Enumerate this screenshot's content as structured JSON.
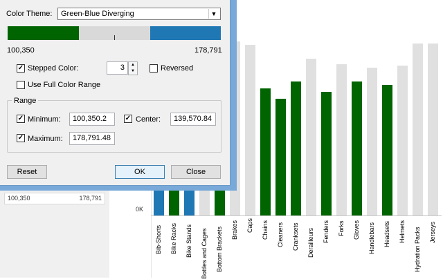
{
  "dialog": {
    "color_theme_label": "Color Theme:",
    "color_theme_value": "Green-Blue Diverging",
    "range_min_text": "100,350",
    "range_max_text": "178,791",
    "stepped_color_label": "Stepped Color:",
    "stepped_value": "3",
    "reversed_label": "Reversed",
    "use_full_range_label": "Use Full Color Range",
    "range_group_label": "Range",
    "minimum_label": "Minimum:",
    "minimum_value": "100,350.2",
    "center_label": "Center:",
    "center_value": "139,570.84",
    "maximum_label": "Maximum:",
    "maximum_value": "178,791.48",
    "reset_label": "Reset",
    "ok_label": "OK",
    "close_label": "Close",
    "stepped_checked": true,
    "reversed_checked": false,
    "full_range_checked": false,
    "minimum_checked": true,
    "center_checked": true,
    "maximum_checked": true,
    "ramp_colors": [
      "#006400",
      "#d9d9d9",
      "#1f77b4"
    ]
  },
  "legend": {
    "min": "100,350",
    "max": "178,791"
  },
  "axis": {
    "zero_label": "0K"
  },
  "chart_data": {
    "type": "bar",
    "categories": [
      "Bib-Shorts",
      "Bike Racks",
      "Bike Stands",
      "Bottles and Cages",
      "Bottom Brackets",
      "Brakes",
      "Caps",
      "Chains",
      "Cleaners",
      "Cranksets",
      "Derailleurs",
      "Fenders",
      "Forks",
      "Gloves",
      "Handlebars",
      "Headsets",
      "Helmets",
      "Hydration Packs",
      "Jerseys"
    ],
    "values": [
      null,
      null,
      null,
      null,
      null,
      100,
      98,
      73,
      67,
      77,
      90,
      71,
      87,
      77,
      85,
      75,
      86,
      99,
      99
    ],
    "colors": [
      "#1f77b4",
      "#006400",
      "#1f77b4",
      "#e0e0e0",
      "#006400",
      "#e0e0e0",
      "#e0e0e0",
      "#006400",
      "#006400",
      "#006400",
      "#e0e0e0",
      "#006400",
      "#e0e0e0",
      "#006400",
      "#e0e0e0",
      "#006400",
      "#e0e0e0",
      "#e0e0e0",
      "#e0e0e0"
    ],
    "xlabel": "",
    "ylabel": ""
  }
}
